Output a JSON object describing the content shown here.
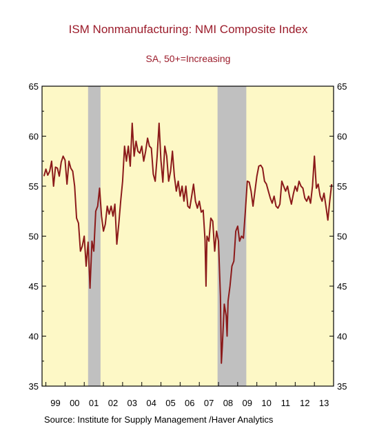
{
  "chart_data": {
    "type": "line",
    "title": "ISM Nonmanufacturing: NMI Composite Index",
    "subtitle": "SA, 50+=Increasing",
    "source": "Source:  Institute for Supply Management /Haver Analytics",
    "x_tick_labels": [
      "99",
      "00",
      "01",
      "02",
      "03",
      "04",
      "05",
      "06",
      "07",
      "08",
      "09",
      "10",
      "11",
      "12",
      "13"
    ],
    "x_tick_years": [
      1999,
      2000,
      2001,
      2002,
      2003,
      2004,
      2005,
      2006,
      2007,
      2008,
      2009,
      2010,
      2011,
      2012,
      2013
    ],
    "xlim": [
      1998.8,
      2014.0
    ],
    "ylim": [
      35,
      65
    ],
    "y_ticks": [
      35,
      40,
      45,
      50,
      55,
      60,
      65
    ],
    "y_tick_labels": [
      "35",
      "40",
      "45",
      "50",
      "55",
      "60",
      "65"
    ],
    "grid": false,
    "recessions": [
      {
        "start": 2001.2,
        "end": 2001.85
      },
      {
        "start": 2007.95,
        "end": 2009.45
      }
    ],
    "colors": {
      "plot_background": "#fdf8c6",
      "line": "#8b1a1a",
      "recession": "#c0c0c0",
      "title": "#9b1b2a",
      "axis": "#000000"
    },
    "series": [
      {
        "values": [
          [
            1998.9,
            56.0
          ],
          [
            1999.0,
            56.7
          ],
          [
            1999.1,
            56.1
          ],
          [
            1999.2,
            56.5
          ],
          [
            1999.3,
            57.5
          ],
          [
            1999.4,
            55.0
          ],
          [
            1999.5,
            56.9
          ],
          [
            1999.6,
            56.8
          ],
          [
            1999.7,
            56.0
          ],
          [
            1999.8,
            57.4
          ],
          [
            1999.9,
            58.0
          ],
          [
            2000.0,
            57.6
          ],
          [
            2000.1,
            55.2
          ],
          [
            2000.2,
            57.5
          ],
          [
            2000.3,
            56.8
          ],
          [
            2000.4,
            56.5
          ],
          [
            2000.5,
            55.0
          ],
          [
            2000.6,
            51.8
          ],
          [
            2000.7,
            51.3
          ],
          [
            2000.8,
            48.5
          ],
          [
            2000.9,
            49.0
          ],
          [
            2001.0,
            50.0
          ],
          [
            2001.1,
            47.0
          ],
          [
            2001.2,
            49.4
          ],
          [
            2001.3,
            44.8
          ],
          [
            2001.4,
            49.5
          ],
          [
            2001.5,
            48.5
          ],
          [
            2001.6,
            52.5
          ],
          [
            2001.7,
            53.0
          ],
          [
            2001.8,
            54.8
          ],
          [
            2001.9,
            52.0
          ],
          [
            2002.0,
            50.5
          ],
          [
            2002.1,
            51.2
          ],
          [
            2002.2,
            53.0
          ],
          [
            2002.3,
            52.2
          ],
          [
            2002.4,
            53.0
          ],
          [
            2002.5,
            52.0
          ],
          [
            2002.6,
            53.2
          ],
          [
            2002.7,
            49.2
          ],
          [
            2002.8,
            51.2
          ],
          [
            2002.9,
            53.5
          ],
          [
            2003.0,
            55.5
          ],
          [
            2003.1,
            59.0
          ],
          [
            2003.2,
            57.5
          ],
          [
            2003.3,
            59.0
          ],
          [
            2003.4,
            57.0
          ],
          [
            2003.5,
            61.3
          ],
          [
            2003.6,
            58.0
          ],
          [
            2003.7,
            59.5
          ],
          [
            2003.8,
            58.5
          ],
          [
            2003.9,
            58.3
          ],
          [
            2004.0,
            59.0
          ],
          [
            2004.1,
            57.5
          ],
          [
            2004.2,
            58.5
          ],
          [
            2004.3,
            59.8
          ],
          [
            2004.4,
            59.0
          ],
          [
            2004.5,
            58.8
          ],
          [
            2004.6,
            56.2
          ],
          [
            2004.7,
            55.5
          ],
          [
            2004.8,
            58.0
          ],
          [
            2004.9,
            61.3
          ],
          [
            2005.0,
            57.6
          ],
          [
            2005.1,
            55.4
          ],
          [
            2005.2,
            59.0
          ],
          [
            2005.3,
            58.0
          ],
          [
            2005.4,
            55.5
          ],
          [
            2005.5,
            56.5
          ],
          [
            2005.6,
            58.5
          ],
          [
            2005.7,
            56.0
          ],
          [
            2005.8,
            54.5
          ],
          [
            2005.9,
            55.5
          ],
          [
            2006.0,
            54.0
          ],
          [
            2006.1,
            55.0
          ],
          [
            2006.2,
            53.5
          ],
          [
            2006.3,
            55.0
          ],
          [
            2006.4,
            53.0
          ],
          [
            2006.5,
            52.8
          ],
          [
            2006.6,
            54.0
          ],
          [
            2006.7,
            55.2
          ],
          [
            2006.8,
            53.5
          ],
          [
            2006.9,
            52.8
          ],
          [
            2007.0,
            53.5
          ],
          [
            2007.1,
            52.4
          ],
          [
            2007.2,
            52.6
          ],
          [
            2007.3,
            49.6
          ],
          [
            2007.35,
            45.0
          ],
          [
            2007.4,
            50.0
          ],
          [
            2007.5,
            49.5
          ],
          [
            2007.6,
            51.8
          ],
          [
            2007.7,
            51.5
          ],
          [
            2007.8,
            48.5
          ],
          [
            2007.9,
            50.5
          ],
          [
            2008.0,
            49.5
          ],
          [
            2008.1,
            44.0
          ],
          [
            2008.15,
            37.3
          ],
          [
            2008.2,
            39.0
          ],
          [
            2008.3,
            43.2
          ],
          [
            2008.4,
            42.0
          ],
          [
            2008.45,
            40.0
          ],
          [
            2008.5,
            43.5
          ],
          [
            2008.6,
            45.0
          ],
          [
            2008.7,
            47.0
          ],
          [
            2008.8,
            47.5
          ],
          [
            2008.9,
            50.5
          ],
          [
            2009.0,
            51.0
          ],
          [
            2009.1,
            49.5
          ],
          [
            2009.2,
            50.0
          ],
          [
            2009.3,
            49.8
          ],
          [
            2009.4,
            52.5
          ],
          [
            2009.5,
            55.5
          ],
          [
            2009.6,
            55.4
          ],
          [
            2009.7,
            54.5
          ],
          [
            2009.8,
            53.0
          ],
          [
            2009.9,
            54.5
          ],
          [
            2010.0,
            56.0
          ],
          [
            2010.1,
            57.0
          ],
          [
            2010.2,
            57.1
          ],
          [
            2010.3,
            56.8
          ],
          [
            2010.4,
            55.5
          ],
          [
            2010.5,
            55.2
          ],
          [
            2010.6,
            54.5
          ],
          [
            2010.7,
            53.8
          ],
          [
            2010.8,
            53.3
          ],
          [
            2010.9,
            54.0
          ],
          [
            2011.0,
            53.0
          ],
          [
            2011.1,
            52.8
          ],
          [
            2011.2,
            53.2
          ],
          [
            2011.3,
            55.5
          ],
          [
            2011.4,
            55.0
          ],
          [
            2011.5,
            54.5
          ],
          [
            2011.6,
            55.0
          ],
          [
            2011.7,
            54.0
          ],
          [
            2011.8,
            53.2
          ],
          [
            2011.9,
            54.2
          ],
          [
            2012.0,
            55.0
          ],
          [
            2012.1,
            54.5
          ],
          [
            2012.2,
            55.5
          ],
          [
            2012.3,
            55.0
          ],
          [
            2012.4,
            54.8
          ],
          [
            2012.5,
            53.8
          ],
          [
            2012.6,
            53.5
          ],
          [
            2012.7,
            54.0
          ],
          [
            2012.8,
            53.3
          ],
          [
            2012.9,
            55.0
          ],
          [
            2013.0,
            58.0
          ],
          [
            2013.1,
            54.8
          ],
          [
            2013.2,
            55.2
          ],
          [
            2013.3,
            54.0
          ],
          [
            2013.4,
            53.5
          ],
          [
            2013.5,
            54.3
          ],
          [
            2013.6,
            53.0
          ],
          [
            2013.7,
            51.6
          ],
          [
            2013.8,
            53.5
          ],
          [
            2013.9,
            55.2
          ]
        ]
      }
    ]
  }
}
